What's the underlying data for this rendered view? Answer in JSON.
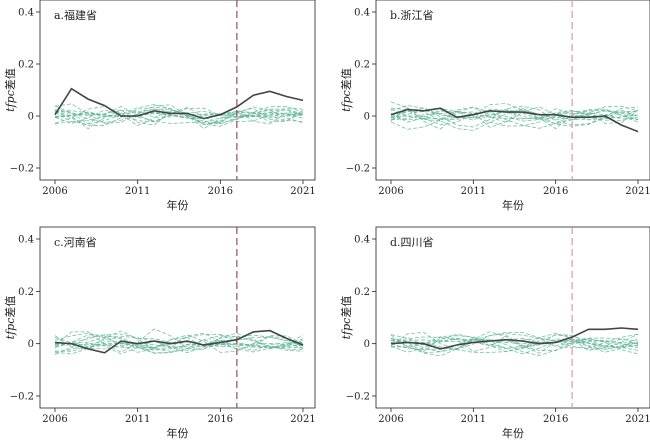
{
  "chart_data": [
    {
      "type": "line",
      "title": "a.福建省",
      "xlabel": "年份",
      "ylabel_italic": "tfpc",
      "ylabel_rest": "差值",
      "xlim": [
        2006,
        2021
      ],
      "ylim": [
        -0.2,
        0.4
      ],
      "xticks": [
        2006,
        2011,
        2016,
        2021
      ],
      "yticks": [
        -0.2,
        0,
        0.2,
        0.4
      ],
      "ytick_labels": [
        "−0.2",
        "0",
        "0.2",
        "0.4"
      ],
      "treatment_year": 2017,
      "treatment_color": "#9b4b55",
      "series_color": "#444444",
      "placebo_color": "#5fb59a",
      "x": [
        2006,
        2007,
        2008,
        2009,
        2010,
        2011,
        2012,
        2013,
        2014,
        2015,
        2016,
        2017,
        2018,
        2019,
        2020,
        2021
      ],
      "series": [
        {
          "values": [
            0.005,
            0.105,
            0.065,
            0.04,
            0.0,
            0.0,
            0.02,
            0.01,
            0.01,
            -0.01,
            0.005,
            0.035,
            0.08,
            0.095,
            0.075,
            0.06
          ]
        }
      ]
    },
    {
      "type": "line",
      "title": "b.浙江省",
      "xlabel": "年份",
      "ylabel_italic": "tfpc",
      "ylabel_rest": "差值",
      "xlim": [
        2006,
        2021
      ],
      "ylim": [
        -0.2,
        0.4
      ],
      "xticks": [
        2006,
        2011,
        2016,
        2021
      ],
      "yticks": [
        -0.2,
        0,
        0.2,
        0.4
      ],
      "ytick_labels": [
        "−0.2",
        "0",
        "0.2",
        "0.4"
      ],
      "treatment_year": 2017,
      "treatment_color": "#d99aa4",
      "series_color": "#444444",
      "placebo_color": "#5fb59a",
      "x": [
        2006,
        2007,
        2008,
        2009,
        2010,
        2011,
        2012,
        2013,
        2014,
        2015,
        2016,
        2017,
        2018,
        2019,
        2020,
        2021
      ],
      "series": [
        {
          "values": [
            0.005,
            0.025,
            0.02,
            0.03,
            -0.005,
            0.005,
            0.02,
            0.015,
            0.015,
            0.005,
            0.005,
            -0.005,
            -0.005,
            0.0,
            -0.035,
            -0.06
          ]
        }
      ]
    },
    {
      "type": "line",
      "title": "c.河南省",
      "xlabel": "年份",
      "ylabel_italic": "tfpc",
      "ylabel_rest": "差值",
      "xlim": [
        2006,
        2021
      ],
      "ylim": [
        -0.2,
        0.4
      ],
      "xticks": [
        2006,
        2011,
        2016,
        2021
      ],
      "yticks": [
        -0.2,
        0,
        0.2,
        0.4
      ],
      "ytick_labels": [
        "−0.2",
        "0",
        "0.2",
        "0.4"
      ],
      "treatment_year": 2017,
      "treatment_color": "#9b4b55",
      "series_color": "#444444",
      "placebo_color": "#5fb59a",
      "x": [
        2006,
        2007,
        2008,
        2009,
        2010,
        2011,
        2012,
        2013,
        2014,
        2015,
        2016,
        2017,
        2018,
        2019,
        2020,
        2021
      ],
      "series": [
        {
          "values": [
            0.005,
            0.0,
            -0.02,
            -0.035,
            0.01,
            0.0,
            0.01,
            0.0,
            0.01,
            -0.005,
            0.005,
            0.015,
            0.045,
            0.05,
            0.02,
            -0.005
          ]
        }
      ]
    },
    {
      "type": "line",
      "title": "d.四川省",
      "xlabel": "年份",
      "ylabel_italic": "tfpc",
      "ylabel_rest": "差值",
      "xlim": [
        2006,
        2021
      ],
      "ylim": [
        -0.2,
        0.4
      ],
      "xticks": [
        2006,
        2011,
        2016,
        2021
      ],
      "yticks": [
        -0.2,
        0,
        0.2,
        0.4
      ],
      "ytick_labels": [
        "−0.2",
        "0",
        "0.2",
        "0.4"
      ],
      "treatment_year": 2017,
      "treatment_color": "#d99aa4",
      "series_color": "#444444",
      "placebo_color": "#5fb59a",
      "x": [
        2006,
        2007,
        2008,
        2009,
        2010,
        2011,
        2012,
        2013,
        2014,
        2015,
        2016,
        2017,
        2018,
        2019,
        2020,
        2021
      ],
      "series": [
        {
          "values": [
            0.0,
            0.005,
            0.0,
            -0.02,
            -0.005,
            0.005,
            0.01,
            0.015,
            0.01,
            0.0,
            0.005,
            0.025,
            0.055,
            0.055,
            0.06,
            0.055
          ]
        }
      ]
    }
  ]
}
